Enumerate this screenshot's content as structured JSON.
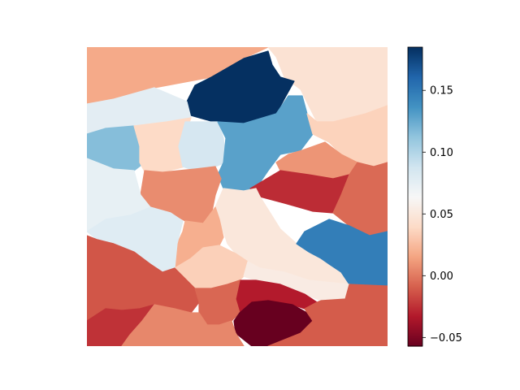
{
  "chart_data": {
    "type": "heatmap",
    "title": "",
    "colormap": "RdBu",
    "colorbar": {
      "vmin": -0.057,
      "vmax": 0.185,
      "ticks": [
        -0.05,
        0.0,
        0.05,
        0.1,
        0.15
      ],
      "tick_labels": [
        "−0.05",
        "0.00",
        "0.05",
        "0.10",
        "0.15"
      ]
    },
    "axes_visible": false,
    "regions": [
      {
        "id": "top-left",
        "value": 0.018
      },
      {
        "id": "top-right",
        "value": 0.046
      },
      {
        "id": "north-center",
        "value": 0.185
      },
      {
        "id": "upper-left-band",
        "value": 0.077
      },
      {
        "id": "left-cyan",
        "value": 0.116
      },
      {
        "id": "left-peach",
        "value": 0.04
      },
      {
        "id": "center-left-light",
        "value": 0.085
      },
      {
        "id": "center-blue",
        "value": 0.13
      },
      {
        "id": "right-peach",
        "value": 0.036
      },
      {
        "id": "right-mid",
        "value": 0.01
      },
      {
        "id": "center-salmon",
        "value": 0.007
      },
      {
        "id": "center-red",
        "value": -0.026
      },
      {
        "id": "east-red",
        "value": -0.005
      },
      {
        "id": "west-light",
        "value": 0.074
      },
      {
        "id": "center-cream",
        "value": 0.05
      },
      {
        "id": "mid-salmon",
        "value": 0.02
      },
      {
        "id": "south-left-light",
        "value": 0.079
      },
      {
        "id": "mid-peach",
        "value": 0.035
      },
      {
        "id": "east-blue",
        "value": 0.148
      },
      {
        "id": "cream-strip",
        "value": 0.054
      },
      {
        "id": "south-west",
        "value": -0.012
      },
      {
        "id": "south-west-deep",
        "value": -0.024
      },
      {
        "id": "south-center-red",
        "value": -0.032
      },
      {
        "id": "south-center-2",
        "value": -0.006
      },
      {
        "id": "south-dark",
        "value": -0.057
      },
      {
        "id": "south-east",
        "value": -0.01
      },
      {
        "id": "bottom-mid",
        "value": 0.005
      }
    ]
  }
}
